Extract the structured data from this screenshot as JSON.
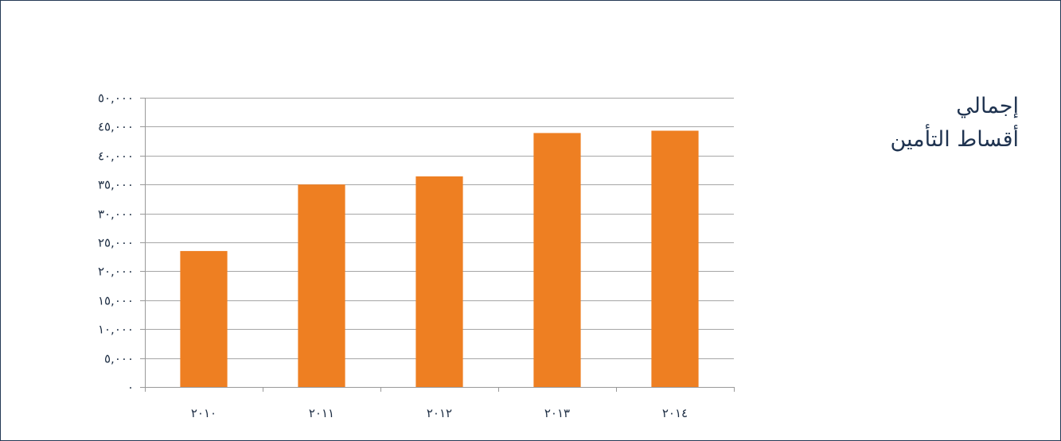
{
  "title": {
    "line1": "إجمالي",
    "line2": "أقساط التأمين"
  },
  "colors": {
    "bar": "#ee7f22",
    "grid": "#a6a6a6",
    "axis": "#999999",
    "text": "#1f3350",
    "border": "#243a55"
  },
  "chart_data": {
    "type": "bar",
    "title": "إجمالي أقساط التأمين",
    "xlabel": "",
    "ylabel": "",
    "categories": [
      "٢٠١٠",
      "٢٠١١",
      "٢٠١٢",
      "٢٠١٣",
      "٢٠١٤"
    ],
    "values": [
      23500,
      35000,
      36400,
      43900,
      44300
    ],
    "ylim": [
      0,
      50000
    ],
    "yticks": [
      0,
      5000,
      10000,
      15000,
      20000,
      25000,
      30000,
      35000,
      40000,
      45000,
      50000
    ],
    "ytick_labels": [
      "٠",
      "٥,٠٠٠",
      "١٠,٠٠٠",
      "١٥,٠٠٠",
      "٢٠,٠٠٠",
      "٢٥,٠٠٠",
      "٣٠,٠٠٠",
      "٣٥,٠٠٠",
      "٤٠,٠٠٠",
      "٤٥,٠٠٠",
      "٥٠,٠٠٠"
    ],
    "grid": true,
    "legend": "none"
  }
}
